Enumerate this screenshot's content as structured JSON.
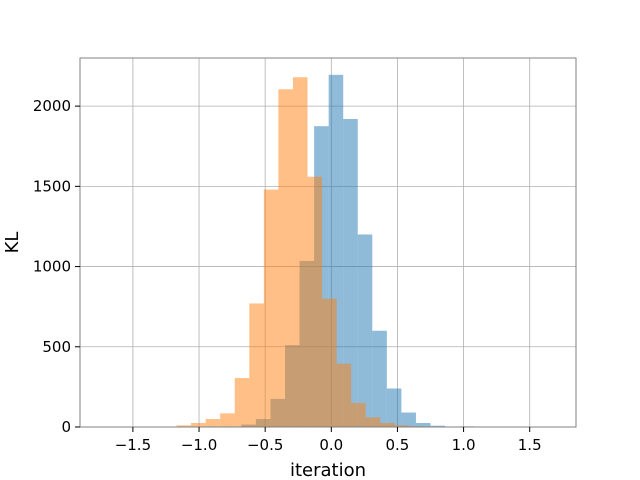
{
  "chart_data": {
    "type": "histogram",
    "xlabel": "iteration",
    "ylabel": "KL",
    "xlim": [
      -1.9,
      1.85
    ],
    "ylim": [
      0,
      2300
    ],
    "grid": true,
    "legend": "none",
    "xticks": [
      -1.5,
      -1.0,
      -0.5,
      0.0,
      0.5,
      1.0,
      1.5
    ],
    "xtick_labels": [
      "−1.5",
      "−1.0",
      "−0.5",
      "0.0",
      "0.5",
      "1.0",
      "1.5"
    ],
    "yticks": [
      0,
      500,
      1000,
      1500,
      2000
    ],
    "ytick_labels": [
      "0",
      "500",
      "1000",
      "1500",
      "2000"
    ],
    "bin_width": 0.11,
    "series": [
      {
        "color": "#1f77b4",
        "opacity": 0.5,
        "bins": [
          {
            "x0": -0.68,
            "y": 15
          },
          {
            "x0": -0.57,
            "y": 50
          },
          {
            "x0": -0.46,
            "y": 175
          },
          {
            "x0": -0.35,
            "y": 510
          },
          {
            "x0": -0.24,
            "y": 1035
          },
          {
            "x0": -0.13,
            "y": 1875
          },
          {
            "x0": -0.02,
            "y": 2195
          },
          {
            "x0": 0.09,
            "y": 1920
          },
          {
            "x0": 0.2,
            "y": 1200
          },
          {
            "x0": 0.31,
            "y": 600
          },
          {
            "x0": 0.42,
            "y": 240
          },
          {
            "x0": 0.53,
            "y": 90
          },
          {
            "x0": 0.64,
            "y": 25
          },
          {
            "x0": 0.75,
            "y": 8
          },
          {
            "x0": 0.86,
            "y": 3
          },
          {
            "x0": 0.97,
            "y": 4
          },
          {
            "x0": 1.08,
            "y": 2
          }
        ]
      },
      {
        "color": "#ff7f0e",
        "opacity": 0.5,
        "bins": [
          {
            "x0": -1.17,
            "y": 10
          },
          {
            "x0": -1.06,
            "y": 25
          },
          {
            "x0": -0.95,
            "y": 50
          },
          {
            "x0": -0.84,
            "y": 85
          },
          {
            "x0": -0.73,
            "y": 305
          },
          {
            "x0": -0.62,
            "y": 770
          },
          {
            "x0": -0.51,
            "y": 1480
          },
          {
            "x0": -0.4,
            "y": 2105
          },
          {
            "x0": -0.29,
            "y": 2180
          },
          {
            "x0": -0.18,
            "y": 1560
          },
          {
            "x0": -0.07,
            "y": 800
          },
          {
            "x0": 0.04,
            "y": 395
          },
          {
            "x0": 0.15,
            "y": 150
          },
          {
            "x0": 0.26,
            "y": 60
          },
          {
            "x0": 0.37,
            "y": 25
          },
          {
            "x0": 0.48,
            "y": 10
          },
          {
            "x0": 0.59,
            "y": 5
          }
        ]
      }
    ]
  }
}
